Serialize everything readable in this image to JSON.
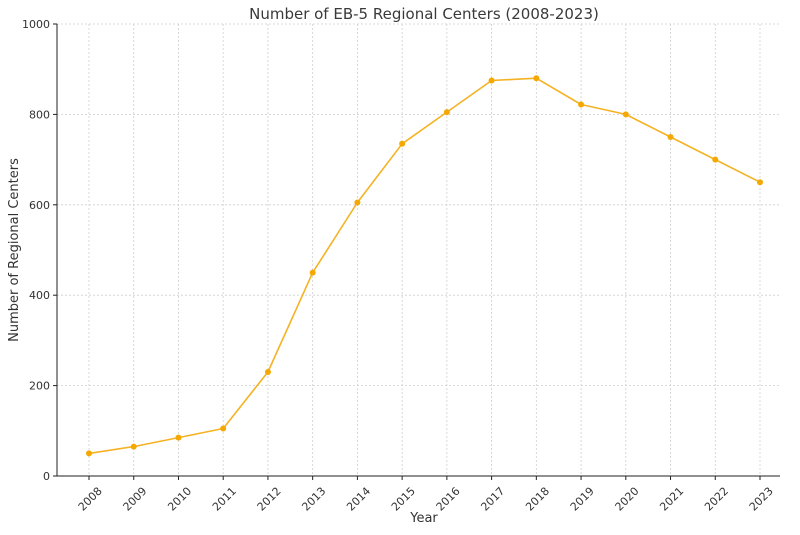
{
  "chart_data": {
    "type": "line",
    "title": "Number of EB-5 Regional Centers (2008-2023)",
    "xlabel": "Year",
    "ylabel": "Number of Regional Centers",
    "x": [
      "2008",
      "2009",
      "2010",
      "2011",
      "2012",
      "2013",
      "2014",
      "2015",
      "2016",
      "2017",
      "2018",
      "2019",
      "2020",
      "2021",
      "2022",
      "2023"
    ],
    "series": [
      {
        "values": [
          50,
          65,
          85,
          105,
          230,
          450,
          605,
          735,
          805,
          875,
          880,
          822,
          800,
          750,
          700,
          650
        ]
      }
    ],
    "ylim": [
      0,
      1000
    ],
    "yticks": [
      0,
      200,
      400,
      600,
      800,
      1000
    ],
    "grid": true,
    "colors": {
      "line": "#f5b223",
      "marker": "#f5a800"
    }
  }
}
